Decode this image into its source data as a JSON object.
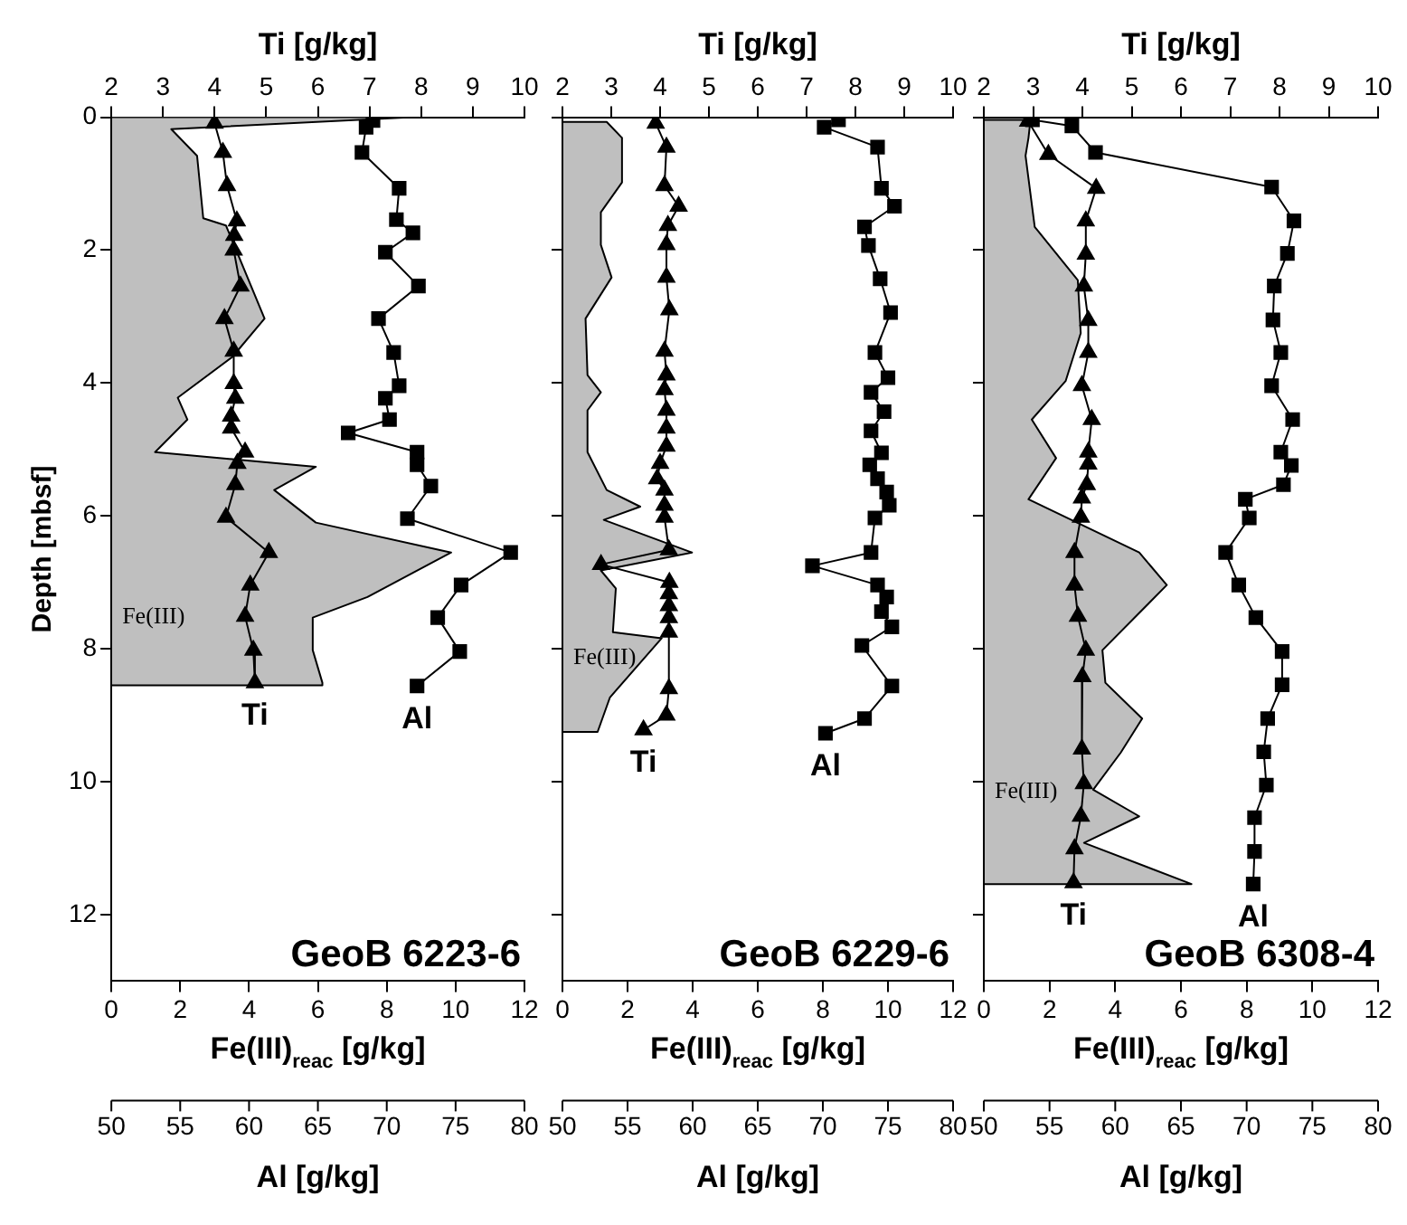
{
  "chart_data": [
    {
      "type": "line",
      "title": "GeoB 6223-6",
      "xlabel": "Fe(III)$_{reac}$ [g/kg]",
      "x2label": "Ti [g/kg]",
      "ylabel": "Depth [mbsf]",
      "xlim": [
        0,
        12
      ],
      "xticks": [
        0,
        2,
        4,
        6,
        8,
        10,
        12
      ],
      "x2lim": [
        2,
        10
      ],
      "x2ticks": [
        2,
        3,
        4,
        5,
        6,
        7,
        8,
        9,
        10
      ],
      "ylim": [
        13,
        0
      ],
      "yticks": [
        0,
        2,
        4,
        6,
        8,
        10,
        12
      ],
      "series": [
        {
          "name": "Fe(III)",
          "type": "area",
          "color": "#000000",
          "x": [
            0,
            8.75,
            1.74,
            2.49,
            2.67,
            3.33,
            4.45,
            3.51,
            1.93,
            2.21,
            1.27,
            5.94,
            4.73,
            5.94,
            9.87,
            7.44,
            5.85,
            5.85,
            6.13,
            6.13,
            0
          ],
          "values": [
            0,
            0,
            0.18,
            0.58,
            1.52,
            1.63,
            3.03,
            3.61,
            4.22,
            4.55,
            5.04,
            5.26,
            5.61,
            6.1,
            6.55,
            7.22,
            7.53,
            8.02,
            8.51,
            8.55,
            8.55
          ]
        },
        {
          "name": "Ti",
          "type": "line",
          "axis": "x2",
          "marker": "triangle",
          "color": "#000000",
          "x": [
            4.0,
            4.16,
            4.24,
            4.43,
            4.38,
            4.37,
            4.5,
            4.19,
            4.37,
            4.37,
            4.4,
            4.32,
            4.32,
            4.59,
            4.44,
            4.4,
            4.22,
            5.05,
            4.69,
            4.59,
            4.75,
            4.78
          ],
          "values": [
            0.09,
            0.53,
            1.03,
            1.56,
            1.78,
            2.0,
            2.54,
            3.03,
            3.52,
            4.01,
            4.23,
            4.5,
            4.68,
            5.04,
            5.21,
            5.53,
            6.02,
            6.55,
            7.04,
            7.51,
            8.02,
            8.51
          ]
        }
      ]
    },
    {
      "type": "line",
      "xlabel": "Al [g/kg]",
      "xlim": [
        50,
        80
      ],
      "xticks": [
        50,
        55,
        60,
        65,
        70,
        75,
        80
      ],
      "ylim": [
        13,
        0
      ],
      "tick_labels": "x",
      "series": [
        {
          "name": "Al",
          "type": "line",
          "marker": "square",
          "color": "#000000",
          "x": [
            69.0,
            68.5,
            68.2,
            70.9,
            70.7,
            71.9,
            69.9,
            72.3,
            69.4,
            70.5,
            70.9,
            69.9,
            70.2,
            67.2,
            72.2,
            72.2,
            73.2,
            71.5,
            79.0,
            75.4,
            73.7,
            75.3,
            72.2
          ],
          "values": [
            0.05,
            0.15,
            0.53,
            1.07,
            1.54,
            1.74,
            2.03,
            2.54,
            3.03,
            3.54,
            4.04,
            4.23,
            4.55,
            4.75,
            5.04,
            5.23,
            5.55,
            6.04,
            6.55,
            7.04,
            7.53,
            8.04,
            8.56
          ]
        }
      ]
    },
    {
      "type": "line",
      "title": "GeoB 6229-6",
      "xlabel": "Fe(III)$_{reac}$ [g/kg]",
      "x2label": "Ti [g/kg]",
      "xlim": [
        0,
        12
      ],
      "xticks": [
        0,
        2,
        4,
        6,
        8,
        10,
        12
      ],
      "x2lim": [
        2,
        10
      ],
      "x2ticks": [
        2,
        3,
        4,
        5,
        6,
        7,
        8,
        9,
        10
      ],
      "ylim": [
        13,
        0
      ],
      "yticks": [
        0,
        2,
        4,
        6,
        8,
        10,
        12
      ],
      "tick_labels": "x",
      "series": [
        {
          "name": "Fe(III)",
          "type": "area",
          "color": "#000000",
          "x": [
            0,
            1.36,
            1.83,
            1.83,
            1.18,
            1.18,
            1.51,
            0.71,
            0.77,
            1.18,
            0.77,
            0.77,
            1.36,
            2.39,
            1.27,
            3.98,
            1.18,
            1.64,
            1.55,
            3.05,
            1.46,
            1.08,
            0
          ],
          "values": [
            0.07,
            0.07,
            0.31,
            0.98,
            1.43,
            1.92,
            2.41,
            3.03,
            3.88,
            4.14,
            4.41,
            5.04,
            5.61,
            5.86,
            6.06,
            6.55,
            6.82,
            7.09,
            7.75,
            7.84,
            8.73,
            9.25,
            9.25
          ]
        },
        {
          "name": "Ti",
          "type": "line",
          "axis": "x2",
          "marker": "triangle",
          "color": "#000000",
          "x": [
            3.91,
            4.13,
            4.09,
            4.38,
            4.16,
            4.13,
            4.13,
            4.19,
            4.09,
            4.13,
            4.09,
            4.13,
            4.13,
            4.13,
            4.0,
            3.94,
            4.09,
            4.09,
            4.09,
            4.18,
            2.79,
            4.19,
            4.18,
            4.18,
            4.18,
            4.18,
            4.18,
            4.13,
            3.66
          ],
          "values": [
            0.09,
            0.45,
            1.03,
            1.34,
            1.63,
            1.92,
            2.41,
            2.9,
            3.52,
            3.88,
            4.1,
            4.41,
            4.68,
            4.95,
            5.21,
            5.44,
            5.61,
            5.84,
            6.02,
            6.51,
            6.73,
            7.0,
            7.17,
            7.35,
            7.53,
            7.75,
            8.6,
            9.0,
            9.22
          ]
        }
      ]
    },
    {
      "type": "line",
      "xlabel": "Al [g/kg]",
      "xlim": [
        50,
        80
      ],
      "xticks": [
        50,
        55,
        60,
        65,
        70,
        75,
        80
      ],
      "ylim": [
        13,
        0
      ],
      "tick_labels": "x",
      "series": [
        {
          "name": "Al",
          "type": "line",
          "marker": "square",
          "color": "#000000",
          "x": [
            71.2,
            70.1,
            74.2,
            74.5,
            75.5,
            73.2,
            73.5,
            74.4,
            75.2,
            74.0,
            75.0,
            73.7,
            74.7,
            73.7,
            74.5,
            73.6,
            74.2,
            74.9,
            75.1,
            74.0,
            73.7,
            69.2,
            74.2,
            74.9,
            74.5,
            75.3,
            73.0,
            75.3,
            73.2,
            70.2
          ],
          "values": [
            0.04,
            0.15,
            0.45,
            1.07,
            1.34,
            1.65,
            1.93,
            2.43,
            2.94,
            3.54,
            3.92,
            4.14,
            4.43,
            4.72,
            5.05,
            5.23,
            5.44,
            5.64,
            5.84,
            6.03,
            6.55,
            6.75,
            7.04,
            7.22,
            7.44,
            7.67,
            7.95,
            8.56,
            9.05,
            9.27
          ]
        }
      ]
    },
    {
      "type": "line",
      "title": "GeoB 6308-4",
      "xlabel": "Fe(III)$_{reac}$ [g/kg]",
      "x2label": "Ti [g/kg]",
      "xlim": [
        0,
        12
      ],
      "xticks": [
        0,
        2,
        4,
        6,
        8,
        10,
        12
      ],
      "x2lim": [
        2,
        10
      ],
      "x2ticks": [
        2,
        3,
        4,
        5,
        6,
        7,
        8,
        9,
        10
      ],
      "ylim": [
        13,
        0
      ],
      "yticks": [
        0,
        2,
        4,
        6,
        8,
        10,
        12
      ],
      "tick_labels": "x",
      "series": [
        {
          "name": "Fe(III)",
          "type": "area",
          "color": "#000000",
          "x": [
            0,
            1.42,
            1.36,
            1.27,
            1.55,
            2.86,
            2.95,
            2.49,
            1.46,
            2.2,
            1.36,
            4.73,
            5.57,
            3.61,
            3.7,
            4.82,
            4.17,
            3.33,
            4.73,
            3.05,
            6.32,
            0
          ],
          "values": [
            0.04,
            0.04,
            0.31,
            0.58,
            1.65,
            2.45,
            3.25,
            3.97,
            4.55,
            5.13,
            5.75,
            6.55,
            7.04,
            8.02,
            8.51,
            9.05,
            9.56,
            10.12,
            10.52,
            10.92,
            11.54,
            11.54
          ]
        },
        {
          "name": "Ti",
          "type": "line",
          "axis": "x2",
          "marker": "triangle",
          "color": "#000000",
          "x": [
            2.9,
            3.31,
            4.28,
            4.07,
            4.07,
            4.03,
            4.12,
            4.12,
            3.99,
            4.19,
            4.12,
            4.12,
            4.09,
            3.99,
            3.97,
            3.84,
            3.84,
            3.91,
            4.07,
            4.0,
            3.99,
            4.03,
            3.97,
            3.84,
            3.82
          ],
          "values": [
            0.06,
            0.56,
            1.07,
            1.56,
            2.06,
            2.54,
            3.06,
            3.54,
            4.04,
            4.55,
            5.04,
            5.22,
            5.53,
            5.73,
            6.02,
            6.55,
            7.04,
            7.51,
            8.02,
            8.42,
            9.51,
            10.03,
            10.52,
            11.01,
            11.52
          ]
        }
      ]
    },
    {
      "type": "line",
      "xlabel": "Al [g/kg]",
      "xlim": [
        50,
        80
      ],
      "xticks": [
        50,
        55,
        60,
        65,
        70,
        75,
        80
      ],
      "ylim": [
        13,
        0
      ],
      "tick_labels": "x",
      "series": [
        {
          "name": "Al",
          "type": "line",
          "marker": "square",
          "color": "#000000",
          "x": [
            53.7,
            56.7,
            58.5,
            71.9,
            73.6,
            73.1,
            72.1,
            72.0,
            72.6,
            71.9,
            73.5,
            72.6,
            73.4,
            72.8,
            69.9,
            70.2,
            68.4,
            69.4,
            70.7,
            72.7,
            72.7,
            71.6,
            71.3,
            71.5,
            70.6,
            70.6,
            70.5
          ],
          "values": [
            0.04,
            0.13,
            0.53,
            1.05,
            1.56,
            2.05,
            2.54,
            3.05,
            3.54,
            4.04,
            4.55,
            5.04,
            5.24,
            5.53,
            5.75,
            6.03,
            6.55,
            7.04,
            7.53,
            8.04,
            8.54,
            9.05,
            9.55,
            10.05,
            10.54,
            11.05,
            11.54
          ]
        }
      ]
    }
  ]
}
